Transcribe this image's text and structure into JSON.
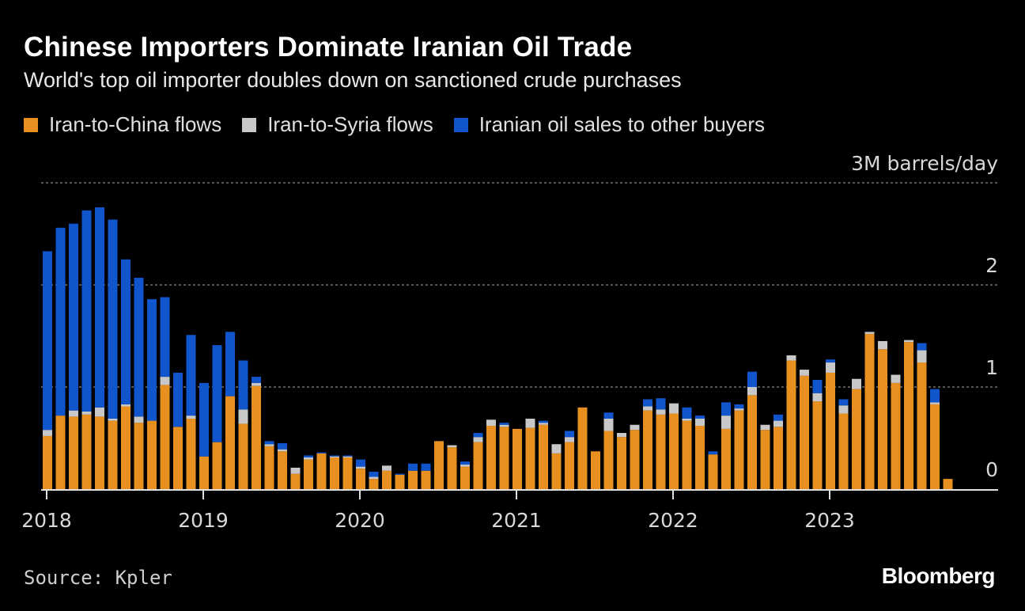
{
  "title": "Chinese Importers Dominate Iranian Oil Trade",
  "subtitle": "World's top oil importer doubles down on sanctioned crude purchases",
  "source": "Source: Kpler",
  "brand": "Bloomberg",
  "legend": [
    {
      "label": "Iran-to-China flows",
      "color": "#e8901f"
    },
    {
      "label": "Iran-to-Syria flows",
      "color": "#c8c8c8"
    },
    {
      "label": "Iranian oil sales to other buyers",
      "color": "#1155cc"
    }
  ],
  "chart_data": {
    "type": "bar",
    "stacked": true,
    "unit_label": "3M barrels/day",
    "ylim": [
      0,
      3
    ],
    "yticks": [
      {
        "value": 0,
        "label": "0"
      },
      {
        "value": 1,
        "label": "1"
      },
      {
        "value": 2,
        "label": "2"
      },
      {
        "value": 3,
        "label": "3M barrels/day"
      }
    ],
    "x_ticks": [
      "2018",
      "2019",
      "2020",
      "2021",
      "2022",
      "2023"
    ],
    "categories": [
      "2018-01",
      "2018-02",
      "2018-03",
      "2018-04",
      "2018-05",
      "2018-06",
      "2018-07",
      "2018-08",
      "2018-09",
      "2018-10",
      "2018-11",
      "2018-12",
      "2019-01",
      "2019-02",
      "2019-03",
      "2019-04",
      "2019-05",
      "2019-06",
      "2019-07",
      "2019-08",
      "2019-09",
      "2019-10",
      "2019-11",
      "2019-12",
      "2020-01",
      "2020-02",
      "2020-03",
      "2020-04",
      "2020-05",
      "2020-06",
      "2020-07",
      "2020-08",
      "2020-09",
      "2020-10",
      "2020-11",
      "2020-12",
      "2021-01",
      "2021-02",
      "2021-03",
      "2021-04",
      "2021-05",
      "2021-06",
      "2021-07",
      "2021-08",
      "2021-09",
      "2021-10",
      "2021-11",
      "2021-12",
      "2022-01",
      "2022-02",
      "2022-03",
      "2022-04",
      "2022-05",
      "2022-06",
      "2022-07",
      "2022-08",
      "2022-09",
      "2022-10",
      "2022-11",
      "2022-12",
      "2023-01",
      "2023-02",
      "2023-03",
      "2023-04",
      "2023-05",
      "2023-06",
      "2023-07",
      "2023-08",
      "2023-09",
      "2023-10"
    ],
    "series": [
      {
        "name": "Iran-to-China flows",
        "color": "#e8901f",
        "values": [
          0.52,
          0.72,
          0.71,
          0.73,
          0.71,
          0.67,
          0.81,
          0.65,
          0.67,
          1.02,
          0.61,
          0.69,
          0.32,
          0.46,
          0.91,
          0.64,
          1.01,
          0.42,
          0.37,
          0.15,
          0.29,
          0.35,
          0.31,
          0.31,
          0.2,
          0.1,
          0.18,
          0.14,
          0.18,
          0.18,
          0.47,
          0.41,
          0.22,
          0.46,
          0.62,
          0.61,
          0.59,
          0.6,
          0.63,
          0.35,
          0.46,
          0.8,
          0.37,
          0.57,
          0.51,
          0.58,
          0.77,
          0.73,
          0.74,
          0.67,
          0.62,
          0.34,
          0.59,
          0.77,
          0.92,
          0.58,
          0.61,
          1.26,
          1.11,
          0.86,
          1.14,
          0.74,
          0.98,
          1.52,
          1.37,
          1.04,
          1.44,
          1.24,
          0.83,
          0.1
        ]
      },
      {
        "name": "Iran-to-Syria flows",
        "color": "#c8c8c8",
        "values": [
          0.06,
          0.0,
          0.06,
          0.03,
          0.09,
          0.02,
          0.02,
          0.06,
          0.0,
          0.08,
          0.0,
          0.03,
          0.0,
          0.0,
          0.0,
          0.14,
          0.03,
          0.02,
          0.02,
          0.06,
          0.02,
          0.0,
          0.01,
          0.01,
          0.02,
          0.02,
          0.05,
          0.0,
          0.0,
          0.0,
          0.0,
          0.02,
          0.02,
          0.05,
          0.06,
          0.02,
          0.0,
          0.09,
          0.02,
          0.09,
          0.05,
          0.0,
          0.0,
          0.12,
          0.04,
          0.05,
          0.04,
          0.05,
          0.1,
          0.02,
          0.07,
          0.0,
          0.13,
          0.02,
          0.08,
          0.05,
          0.06,
          0.05,
          0.06,
          0.08,
          0.1,
          0.08,
          0.1,
          0.02,
          0.08,
          0.08,
          0.02,
          0.12,
          0.02,
          0.0
        ]
      },
      {
        "name": "Iranian oil sales to other buyers",
        "color": "#1155cc",
        "values": [
          1.75,
          1.84,
          1.83,
          1.97,
          1.96,
          1.95,
          1.42,
          1.36,
          1.19,
          0.78,
          0.53,
          0.79,
          0.72,
          0.95,
          0.63,
          0.48,
          0.06,
          0.03,
          0.06,
          0.0,
          0.02,
          0.01,
          0.01,
          0.01,
          0.07,
          0.05,
          0.0,
          0.01,
          0.07,
          0.07,
          0.0,
          0.0,
          0.03,
          0.04,
          0.0,
          0.02,
          0.0,
          0.0,
          0.02,
          0.0,
          0.06,
          0.0,
          0.0,
          0.06,
          0.0,
          0.0,
          0.07,
          0.11,
          0.0,
          0.11,
          0.03,
          0.03,
          0.13,
          0.04,
          0.15,
          0.0,
          0.06,
          0.0,
          0.0,
          0.13,
          0.03,
          0.06,
          0.0,
          0.0,
          0.0,
          0.0,
          0.0,
          0.07,
          0.13,
          0.0
        ]
      }
    ]
  }
}
